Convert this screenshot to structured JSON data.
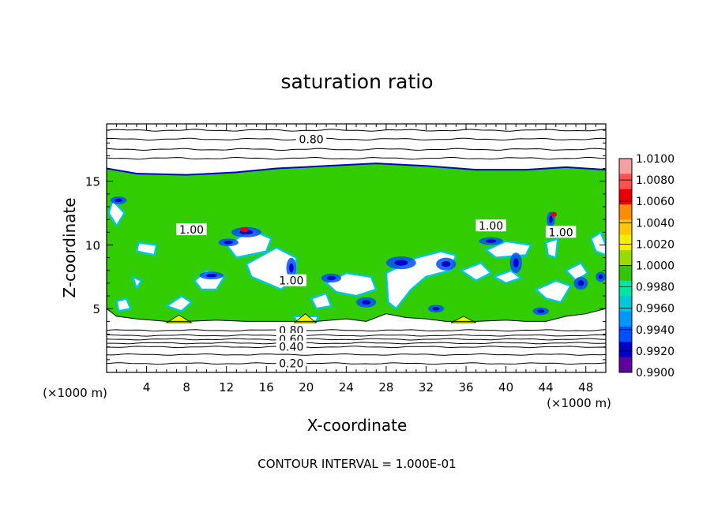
{
  "chart_data": {
    "type": "heatmap",
    "title": "saturation ratio",
    "xlabel": "X-coordinate",
    "ylabel": "Z-coordinate",
    "x_unit_label": "(×1000 m)",
    "x_unit_label_right": "(×1000 m)",
    "xlim": [
      0,
      50
    ],
    "ylim": [
      0,
      19.5
    ],
    "x_ticks": [
      "4",
      "8",
      "12",
      "16",
      "20",
      "24",
      "28",
      "32",
      "36",
      "40",
      "44",
      "48"
    ],
    "y_ticks": [
      "5",
      "10",
      "15"
    ],
    "footer": "CONTOUR INTERVAL = 1.000E-01",
    "colorbar": {
      "labels": [
        "1.0100",
        "1.0080",
        "1.0060",
        "1.0040",
        "1.0020",
        "1.0000",
        "0.9980",
        "0.9960",
        "0.9940",
        "0.9920",
        "0.9900"
      ],
      "colors": [
        "#f5a0a0",
        "#ff5050",
        "#e80000",
        "#ff8c00",
        "#ffc800",
        "#f0f000",
        "#96dc00",
        "#32c800",
        "#00e6a0",
        "#00c8dc",
        "#0096ff",
        "#0050ff",
        "#0000cc",
        "#6000a0"
      ]
    },
    "contour_labels": [
      {
        "text": "0.80",
        "x": 20.5,
        "y": 18.3
      },
      {
        "text": "1.00",
        "x": 8.5,
        "y": 11.2
      },
      {
        "text": "1.00",
        "x": 18.5,
        "y": 7.2
      },
      {
        "text": "1.00",
        "x": 38.5,
        "y": 11.5
      },
      {
        "text": "1.00",
        "x": 45.5,
        "y": 11.0
      },
      {
        "text": "0.80",
        "x": 18.5,
        "y": 3.3
      },
      {
        "text": "0.60",
        "x": 18.5,
        "y": 2.6
      },
      {
        "text": "0.40",
        "x": 18.5,
        "y": 2.0
      },
      {
        "text": "0.20",
        "x": 18.5,
        "y": 0.7
      }
    ],
    "upper_contours": [
      19.0,
      18.3,
      17.5,
      16.8
    ],
    "lower_contours": [
      3.3,
      2.9,
      2.6,
      2.3,
      2.0,
      1.4,
      0.7
    ],
    "cloud_top": [
      [
        0,
        16.0
      ],
      [
        3,
        15.6
      ],
      [
        8,
        15.5
      ],
      [
        13,
        15.7
      ],
      [
        17,
        16.0
      ],
      [
        22,
        16.2
      ],
      [
        27,
        16.4
      ],
      [
        32,
        16.2
      ],
      [
        37,
        15.9
      ],
      [
        42,
        15.9
      ],
      [
        46,
        16.1
      ],
      [
        50,
        15.9
      ]
    ],
    "cloud_base": [
      [
        0,
        5.0
      ],
      [
        1,
        4.4
      ],
      [
        3,
        4.2
      ],
      [
        6,
        4.0
      ],
      [
        8,
        4.0
      ],
      [
        11,
        4.1
      ],
      [
        14,
        4.0
      ],
      [
        17,
        4.0
      ],
      [
        19,
        4.0
      ],
      [
        21,
        4.0
      ],
      [
        24,
        4.2
      ],
      [
        26,
        4.0
      ],
      [
        28,
        4.6
      ],
      [
        30,
        4.3
      ],
      [
        32,
        4.2
      ],
      [
        34,
        4.0
      ],
      [
        37,
        4.0
      ],
      [
        40,
        4.1
      ],
      [
        42,
        4.0
      ],
      [
        44,
        4.0
      ],
      [
        46,
        4.4
      ],
      [
        48,
        4.6
      ],
      [
        50,
        5.0
      ]
    ],
    "clear_regions": [
      [
        [
          0.6,
          13.5
        ],
        [
          1.8,
          12.5
        ],
        [
          1.0,
          11.5
        ],
        [
          0.2,
          12.5
        ]
      ],
      [
        [
          3.2,
          10.2
        ],
        [
          5.0,
          10.0
        ],
        [
          4.8,
          9.2
        ],
        [
          3.0,
          9.5
        ]
      ],
      [
        [
          12.0,
          10.0
        ],
        [
          14.5,
          11.2
        ],
        [
          16.5,
          10.5
        ],
        [
          16.0,
          9.5
        ],
        [
          13.0,
          9.0
        ]
      ],
      [
        [
          14.0,
          8.5
        ],
        [
          17.0,
          9.8
        ],
        [
          19.0,
          9.0
        ],
        [
          19.0,
          7.5
        ],
        [
          17.5,
          6.5
        ],
        [
          16.0,
          7.0
        ],
        [
          14.5,
          7.5
        ]
      ],
      [
        [
          8.8,
          7.2
        ],
        [
          10.0,
          8.0
        ],
        [
          11.8,
          7.5
        ],
        [
          11.0,
          6.5
        ],
        [
          9.5,
          6.5
        ]
      ],
      [
        [
          2.6,
          7.5
        ],
        [
          3.5,
          7.2
        ],
        [
          3.0,
          6.6
        ]
      ],
      [
        [
          1.0,
          5.6
        ],
        [
          2.0,
          5.8
        ],
        [
          2.4,
          5.0
        ],
        [
          1.2,
          4.8
        ]
      ],
      [
        [
          6.0,
          5.2
        ],
        [
          7.5,
          6.0
        ],
        [
          8.5,
          5.5
        ],
        [
          7.5,
          4.8
        ]
      ],
      [
        [
          22.0,
          7.0
        ],
        [
          24.0,
          7.8
        ],
        [
          26.5,
          7.5
        ],
        [
          27.0,
          6.5
        ],
        [
          25.0,
          6.0
        ],
        [
          23.0,
          6.3
        ]
      ],
      [
        [
          20.5,
          5.8
        ],
        [
          22.0,
          6.2
        ],
        [
          22.5,
          5.2
        ],
        [
          21.0,
          5.0
        ]
      ],
      [
        [
          28.0,
          7.8
        ],
        [
          31.0,
          9.0
        ],
        [
          33.5,
          9.5
        ],
        [
          35.0,
          9.2
        ],
        [
          34.5,
          8.0
        ],
        [
          32.0,
          7.5
        ],
        [
          30.5,
          6.5
        ],
        [
          29.0,
          5.0
        ],
        [
          28.2,
          5.5
        ]
      ],
      [
        [
          35.5,
          8.0
        ],
        [
          37.5,
          8.6
        ],
        [
          38.5,
          7.8
        ],
        [
          37.0,
          7.2
        ]
      ],
      [
        [
          38.0,
          9.6
        ],
        [
          40.0,
          10.3
        ],
        [
          42.5,
          10.0
        ],
        [
          42.0,
          9.2
        ],
        [
          39.0,
          9.0
        ]
      ],
      [
        [
          38.8,
          7.5
        ],
        [
          40.5,
          8.0
        ],
        [
          41.5,
          7.4
        ],
        [
          40.0,
          7.0
        ]
      ],
      [
        [
          44.0,
          10.2
        ],
        [
          45.2,
          10.5
        ],
        [
          45.0,
          9.0
        ],
        [
          44.2,
          9.2
        ]
      ],
      [
        [
          43.0,
          6.5
        ],
        [
          45.0,
          7.2
        ],
        [
          46.5,
          6.8
        ],
        [
          45.5,
          5.5
        ],
        [
          44.0,
          5.8
        ]
      ],
      [
        [
          46.0,
          8.0
        ],
        [
          47.5,
          8.6
        ],
        [
          48.2,
          7.8
        ],
        [
          47.0,
          7.2
        ]
      ],
      [
        [
          48.5,
          10.5
        ],
        [
          49.5,
          11.0
        ],
        [
          50,
          10.0
        ],
        [
          50,
          9.2
        ],
        [
          49.0,
          9.5
        ]
      ],
      [
        [
          18.8,
          4.4
        ],
        [
          21.2,
          4.4
        ],
        [
          21.0,
          4.0
        ],
        [
          19.0,
          4.0
        ]
      ]
    ],
    "blue_patches": [
      {
        "x": 1.2,
        "y": 13.5,
        "rx": 0.8,
        "ry": 0.3
      },
      {
        "x": 14.0,
        "y": 11.0,
        "rx": 1.5,
        "ry": 0.4
      },
      {
        "x": 12.2,
        "y": 10.2,
        "rx": 1.0,
        "ry": 0.3
      },
      {
        "x": 18.5,
        "y": 8.2,
        "rx": 0.5,
        "ry": 0.8
      },
      {
        "x": 10.5,
        "y": 7.6,
        "rx": 1.2,
        "ry": 0.3
      },
      {
        "x": 22.5,
        "y": 7.4,
        "rx": 1.0,
        "ry": 0.35
      },
      {
        "x": 29.5,
        "y": 8.6,
        "rx": 1.5,
        "ry": 0.5
      },
      {
        "x": 34.0,
        "y": 8.5,
        "rx": 1.0,
        "ry": 0.5
      },
      {
        "x": 38.5,
        "y": 10.3,
        "rx": 1.2,
        "ry": 0.3
      },
      {
        "x": 41.0,
        "y": 8.6,
        "rx": 0.6,
        "ry": 0.8
      },
      {
        "x": 44.5,
        "y": 12.0,
        "rx": 0.4,
        "ry": 0.6
      },
      {
        "x": 47.5,
        "y": 7.0,
        "rx": 0.7,
        "ry": 0.5
      },
      {
        "x": 49.5,
        "y": 7.5,
        "rx": 0.5,
        "ry": 0.4
      },
      {
        "x": 26.0,
        "y": 5.5,
        "rx": 1.0,
        "ry": 0.4
      },
      {
        "x": 33.0,
        "y": 5.0,
        "rx": 0.8,
        "ry": 0.3
      },
      {
        "x": 43.5,
        "y": 4.8,
        "rx": 0.8,
        "ry": 0.3
      }
    ],
    "red_patches": [
      {
        "x": 13.8,
        "y": 11.2,
        "rx": 0.4,
        "ry": 0.2
      },
      {
        "x": 44.8,
        "y": 12.4,
        "rx": 0.3,
        "ry": 0.2
      }
    ],
    "yellow_cells": [
      {
        "x0": 6.0,
        "x1": 8.5,
        "y0": 3.9,
        "y1": 4.5
      },
      {
        "x0": 18.8,
        "x1": 21.0,
        "y0": 3.9,
        "y1": 4.6
      },
      {
        "x0": 34.5,
        "x1": 37.0,
        "y0": 3.9,
        "y1": 4.4
      }
    ]
  }
}
